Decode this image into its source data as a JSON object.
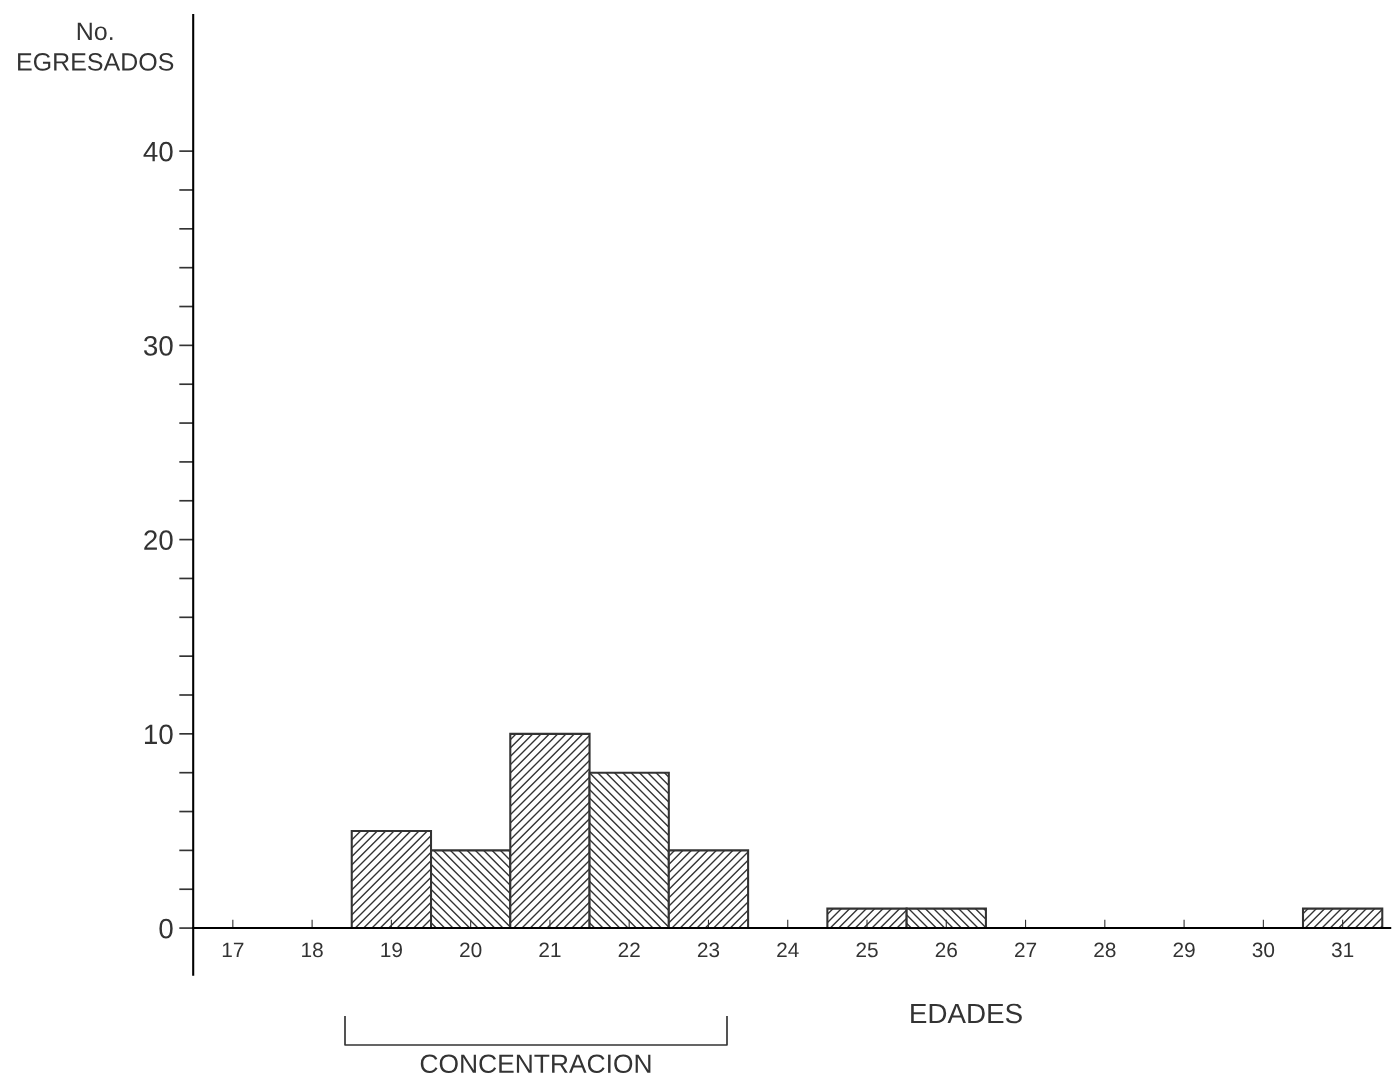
{
  "chart_data": {
    "type": "bar",
    "categories": [
      "17",
      "18",
      "19",
      "20",
      "21",
      "22",
      "23",
      "24",
      "25",
      "26",
      "27",
      "28",
      "29",
      "30",
      "31"
    ],
    "series": [
      {
        "color": "#333333",
        "values": [
          0,
          0,
          5,
          4,
          10,
          8,
          4,
          0,
          1,
          1,
          0,
          0,
          0,
          0,
          1
        ]
      }
    ],
    "xlabel": "EDADES",
    "ylabel": "No.\nEGRESADOS",
    "ylim": [
      -2.4,
      47
    ],
    "yticks": [
      0,
      {
        "value": 2,
        "label": null
      },
      {
        "value": 4,
        "label": null
      },
      {
        "value": 6,
        "label": null
      },
      {
        "value": 8,
        "label": null
      },
      10,
      {
        "value": 12,
        "label": null
      },
      {
        "value": 14,
        "label": null
      },
      {
        "value": 16,
        "label": null
      },
      {
        "value": 18,
        "label": null
      },
      20,
      {
        "value": 22,
        "label": null
      },
      {
        "value": 24,
        "label": null
      },
      {
        "value": 26,
        "label": null
      },
      {
        "value": 28,
        "label": null
      },
      30,
      {
        "value": 32,
        "label": null
      },
      {
        "value": 34,
        "label": null
      },
      {
        "value": 36,
        "label": null
      },
      {
        "value": 38,
        "label": null
      },
      40
    ],
    "annotations": [
      "CONCENTRACION"
    ],
    "grid": false,
    "legend": false
  }
}
